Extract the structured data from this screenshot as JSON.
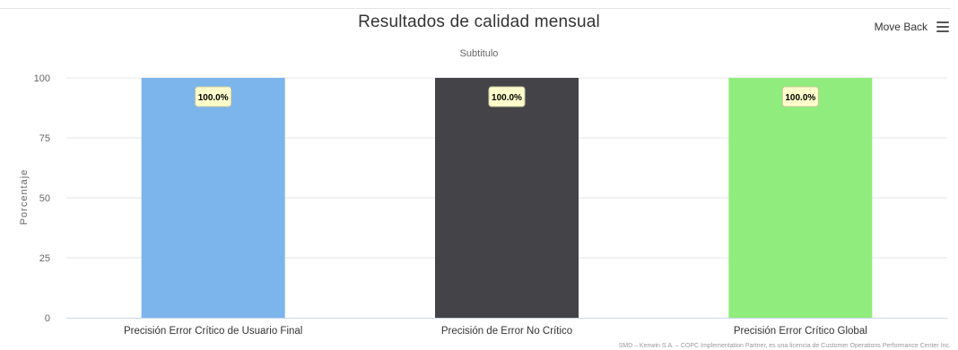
{
  "chart_data": {
    "type": "bar",
    "title": "Resultados de calidad mensual",
    "subtitle": "Subtitulo",
    "xlabel": "",
    "ylabel": "Porcentaje",
    "ylim": [
      0,
      100
    ],
    "yticks": [
      0,
      25,
      50,
      75,
      100
    ],
    "categories": [
      "Precisión Error Crítico de Usuario Final",
      "Precisión de Error No Crítico",
      "Precisión Error Crítico Global"
    ],
    "values": [
      100,
      100,
      100
    ],
    "data_labels": [
      "100.0%",
      "100.0%",
      "100.0%"
    ],
    "colors": [
      "#7cb5ec",
      "#434348",
      "#90ed7d"
    ],
    "grid": true,
    "legend": "none"
  },
  "toolbar": {
    "move_back_label": "Move Back",
    "menu_icon": "hamburger-menu-icon"
  },
  "credits": "SMD – Kenwin S.A. – COPC Implementation Partner, es una licencia de Customer Operations Performance Center Inc."
}
